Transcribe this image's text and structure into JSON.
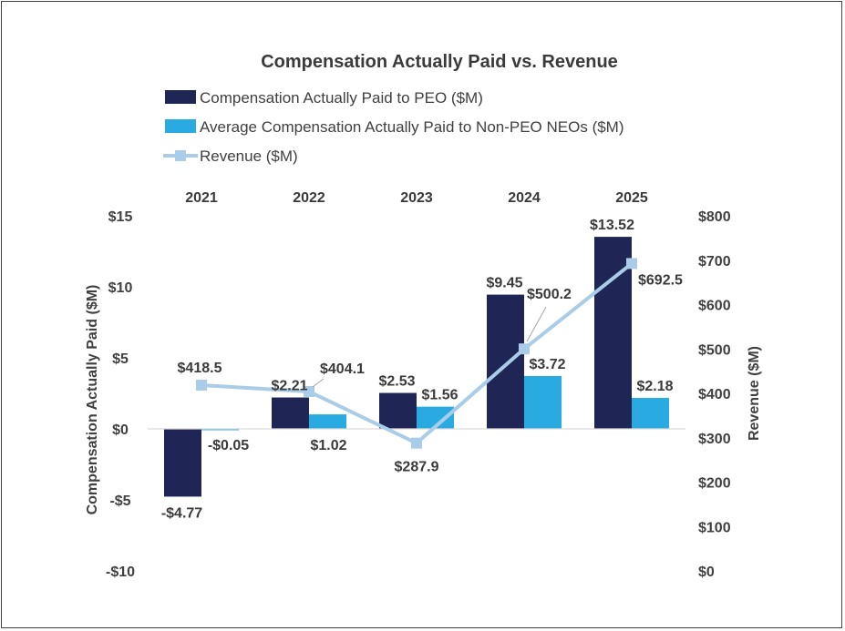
{
  "chart_data": {
    "type": "bar",
    "title": "Compensation Actually Paid vs. Revenue",
    "categories": [
      "2021",
      "2022",
      "2023",
      "2024",
      "2025"
    ],
    "series": [
      {
        "name": "Compensation Actually Paid to PEO ($M)",
        "kind": "bar",
        "axis": "left",
        "color": "#1f2656",
        "values": [
          -4.77,
          2.21,
          2.53,
          9.45,
          13.52
        ],
        "labels": [
          "-$4.77",
          "$2.21",
          "$2.53",
          "$9.45",
          "$13.52"
        ]
      },
      {
        "name": "Average Compensation Actually Paid to Non-PEO NEOs ($M)",
        "kind": "bar",
        "axis": "left",
        "color": "#29abe2",
        "values": [
          -0.05,
          1.02,
          1.56,
          3.72,
          2.18
        ],
        "labels": [
          "-$0.05",
          "$1.02",
          "$1.56",
          "$3.72",
          "$2.18"
        ]
      },
      {
        "name": "Revenue ($M)",
        "kind": "line",
        "axis": "right",
        "color": "#a9cce8",
        "values": [
          418.5,
          404.1,
          287.9,
          500.2,
          692.5
        ],
        "labels": [
          "$418.5",
          "$404.1",
          "$287.9",
          "$500.2",
          "$692.5"
        ]
      }
    ],
    "y_left": {
      "label": "Compensation Actually Paid ($M)",
      "range": [
        -10,
        15
      ],
      "ticks": [
        15,
        10,
        5,
        0,
        -5,
        -10
      ],
      "tick_labels": [
        "$15",
        "$10",
        "$5",
        "$0",
        "-$5",
        "-$10"
      ]
    },
    "y_right": {
      "label": "Revenue ($M)",
      "range": [
        0,
        800
      ],
      "ticks": [
        800,
        700,
        600,
        500,
        400,
        300,
        200,
        100,
        0
      ],
      "tick_labels": [
        "$800",
        "$700",
        "$600",
        "$500",
        "$400",
        "$300",
        "$200",
        "$100",
        "$0"
      ]
    },
    "x_axis_position": "top",
    "legend_position": "top",
    "grid": false
  }
}
